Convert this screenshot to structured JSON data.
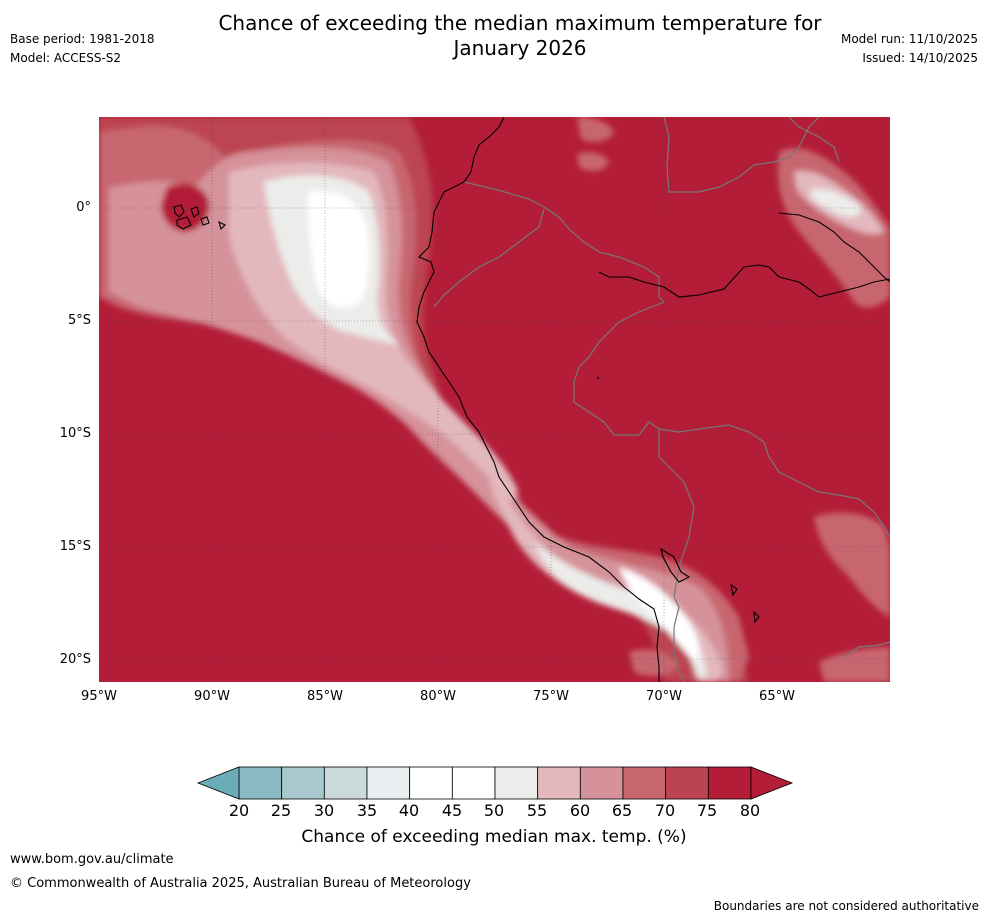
{
  "header": {
    "title_line1": "Chance of exceeding the median maximum temperature for",
    "title_line2": "January 2026",
    "base_period": "Base period: 1981-2018",
    "model": "Model: ACCESS-S2",
    "model_run": "Model run: 11/10/2025",
    "issued": "Issued: 14/10/2025"
  },
  "map": {
    "lat_labels": [
      "0°",
      "5°S",
      "10°S",
      "15°S",
      "20°S"
    ],
    "lon_labels": [
      "95°W",
      "90°W",
      "85°W",
      "80°W",
      "75°W",
      "70°W",
      "65°W"
    ],
    "colors": {
      "ocean_background": "#b31d37",
      "coastline": "#000000",
      "border": "#777777"
    }
  },
  "colorbar": {
    "ticks": [
      "20",
      "25",
      "30",
      "35",
      "40",
      "45",
      "50",
      "55",
      "60",
      "65",
      "70",
      "75",
      "80"
    ],
    "label": "Chance of exceeding median max. temp. (%)",
    "colors": [
      "#6aadb9",
      "#8bb9c4",
      "#a9c8cd",
      "#cad9da",
      "#e9eff1",
      "#ffffff",
      "#ffffff",
      "#ececea",
      "#e2b8bd",
      "#d5929a",
      "#c8666f",
      "#bc4451",
      "#b31d37"
    ]
  },
  "footer": {
    "website": "www.bom.gov.au/climate",
    "copyright": "© Commonwealth of Australia 2025, Australian Bureau of Meteorology",
    "disclaimer": "Boundaries are not considered authoritative"
  }
}
